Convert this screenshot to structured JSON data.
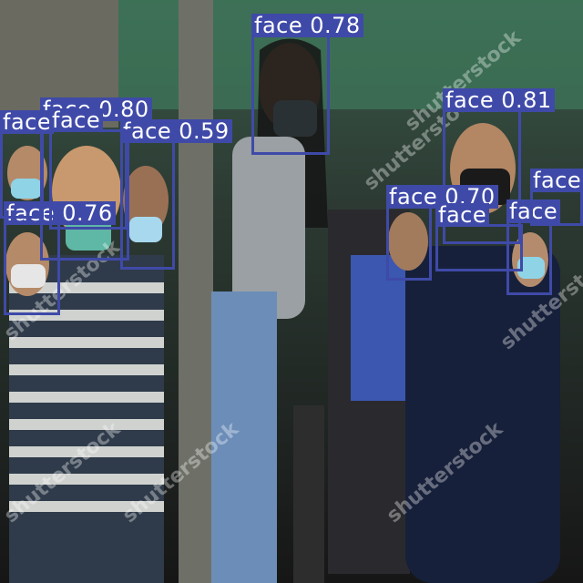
{
  "image": {
    "description_colors": {
      "box": "#3f4aa8",
      "label_text": "#ffffff"
    }
  },
  "watermark": "shutterstock",
  "detections": [
    {
      "label": "face 0.78"
    },
    {
      "label": "face 0.80"
    },
    {
      "label": "face 0.59"
    },
    {
      "label": "face 0.76"
    },
    {
      "label": "face 0.81"
    },
    {
      "label": "face 0.70"
    },
    {
      "label": "face"
    },
    {
      "label": "face"
    },
    {
      "label": "face"
    },
    {
      "label": "face"
    },
    {
      "label": "face"
    }
  ]
}
